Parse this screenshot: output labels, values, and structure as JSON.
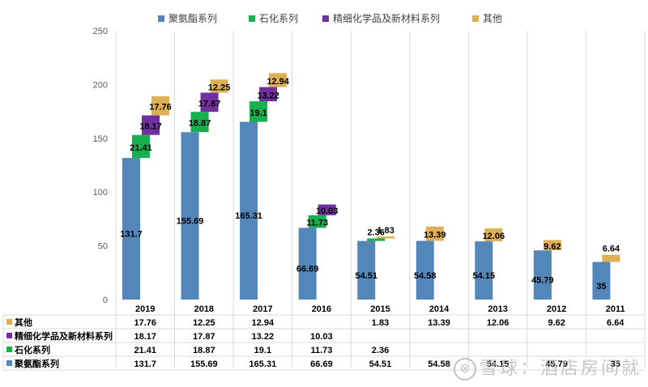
{
  "chart_data": {
    "type": "bar",
    "subtype": "stacked-waterfall-with-data-table",
    "title": "",
    "xlabel": "",
    "ylabel": "",
    "ylim": [
      0,
      250
    ],
    "yticks": [
      0,
      50,
      100,
      150,
      200,
      250
    ],
    "grid": "vertical category separators",
    "legend_position": "top",
    "categories": [
      "2019",
      "2018",
      "2017",
      "2016",
      "2015",
      "2014",
      "2013",
      "2012",
      "2011"
    ],
    "series": [
      {
        "name": "聚氨酯系列",
        "color": "#5487b9",
        "values": [
          131.7,
          155.69,
          165.31,
          66.69,
          54.51,
          54.58,
          54.15,
          45.79,
          35
        ]
      },
      {
        "name": "石化系列",
        "color": "#16b04f",
        "values": [
          21.41,
          18.87,
          19.1,
          11.73,
          2.36,
          null,
          null,
          null,
          null
        ]
      },
      {
        "name": "精细化学品及新材料系列",
        "color": "#7030a0",
        "values": [
          18.17,
          17.87,
          13.22,
          10.03,
          null,
          null,
          null,
          null,
          null
        ]
      },
      {
        "name": "其他",
        "color": "#ddb055",
        "values": [
          17.76,
          12.25,
          12.94,
          null,
          1.83,
          13.39,
          12.06,
          9.62,
          6.64
        ]
      }
    ],
    "table": {
      "row_order": [
        "其他",
        "精细化学品及新材料系列",
        "石化系列",
        "聚氨酯系列"
      ]
    }
  },
  "watermark": {
    "icon": "snowball-logo-icon",
    "icon_glyph": "⊗",
    "text": "雪球：酒店房间就"
  }
}
